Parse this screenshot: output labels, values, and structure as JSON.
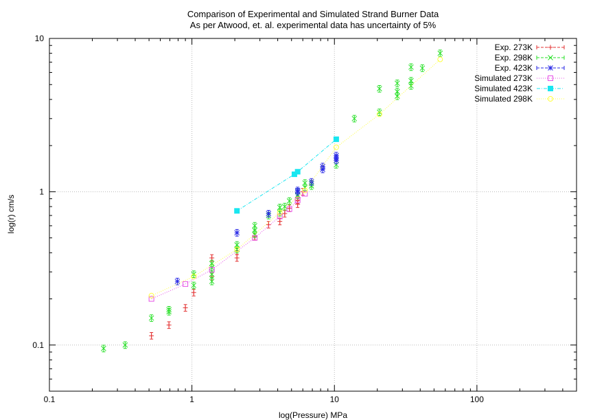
{
  "chart_data": {
    "type": "scatter",
    "title": "Comparison of Experimental and Simulated Strand Burner Data",
    "subtitle": "As per Atwood, et. al. experimental data has uncertainty of 5%",
    "xlabel": "log(Pressure) MPa",
    "ylabel": "log(r) cm/s",
    "xscale": "log",
    "yscale": "log",
    "xlim": [
      0.1,
      500
    ],
    "ylim": [
      0.05,
      10
    ],
    "xticks": [
      {
        "value": 0.1,
        "label": "0.1"
      },
      {
        "value": 1,
        "label": "1"
      },
      {
        "value": 10,
        "label": "10"
      },
      {
        "value": 100,
        "label": "100"
      }
    ],
    "yticks": [
      {
        "value": 0.1,
        "label": "0.1"
      },
      {
        "value": 1,
        "label": "1"
      },
      {
        "value": 10,
        "label": "10"
      }
    ],
    "grid": true,
    "legend_position": "top-right",
    "series": [
      {
        "name": "Exp. 273K",
        "color": "#e33232",
        "marker": "plus",
        "line": false,
        "errorbars": true,
        "x": [
          0.52,
          0.69,
          0.9,
          1.03,
          1.38,
          1.38,
          2.07,
          2.07,
          2.76,
          3.45,
          4.14,
          4.48,
          4.83,
          5.52,
          5.52,
          6.0
        ],
        "y": [
          0.115,
          0.135,
          0.175,
          0.22,
          0.28,
          0.37,
          0.37,
          0.41,
          0.51,
          0.61,
          0.64,
          0.72,
          0.78,
          0.83,
          0.88,
          1.0
        ]
      },
      {
        "name": "Exp. 298K",
        "color": "#28e028",
        "marker": "x",
        "line": false,
        "errorbars": true,
        "x": [
          0.24,
          0.34,
          0.52,
          0.69,
          0.69,
          1.03,
          1.03,
          1.38,
          1.38,
          1.38,
          1.38,
          2.07,
          2.07,
          2.76,
          2.76,
          2.76,
          3.45,
          4.14,
          4.14,
          4.48,
          4.83,
          5.52,
          5.52,
          6.21,
          6.21,
          6.9,
          6.9,
          10.3,
          13.8,
          20.7,
          20.7,
          27.6,
          27.6,
          27.6,
          34.5,
          34.5,
          34.5,
          41.4,
          55.2
        ],
        "y": [
          0.095,
          0.1,
          0.15,
          0.165,
          0.17,
          0.245,
          0.29,
          0.26,
          0.29,
          0.32,
          0.34,
          0.42,
          0.45,
          0.53,
          0.56,
          0.6,
          0.7,
          0.73,
          0.79,
          0.8,
          0.87,
          0.95,
          1.0,
          1.07,
          1.14,
          1.09,
          1.13,
          1.5,
          3.0,
          3.3,
          4.7,
          4.2,
          4.5,
          5.1,
          4.9,
          5.3,
          6.5,
          6.4,
          8.0
        ]
      },
      {
        "name": "Exp. 423K",
        "color": "#2828e6",
        "marker": "star",
        "line": false,
        "errorbars": true,
        "x": [
          0.79,
          2.07,
          3.45,
          5.52,
          5.52,
          6.9,
          8.27,
          8.27,
          10.3,
          10.3,
          10.3
        ],
        "y": [
          0.26,
          0.54,
          0.72,
          1.0,
          1.02,
          1.16,
          1.4,
          1.46,
          1.6,
          1.66,
          1.72
        ]
      },
      {
        "name": "Simulated 273K",
        "color": "#e650e6",
        "marker": "open-square",
        "line": true,
        "errorbars": false,
        "x": [
          0.52,
          0.9,
          1.38,
          2.76,
          4.14,
          4.83,
          5.52,
          6.21
        ],
        "y": [
          0.2,
          0.25,
          0.31,
          0.5,
          0.69,
          0.77,
          0.88,
          0.97
        ]
      },
      {
        "name": "Simulated 423K",
        "color": "#19e6f0",
        "marker": "filled-square",
        "line": true,
        "errorbars": false,
        "x": [
          2.07,
          5.24,
          5.52,
          10.3
        ],
        "y": [
          0.75,
          1.3,
          1.35,
          2.2
        ]
      },
      {
        "name": "Simulated 298K",
        "color": "#ffff3c",
        "marker": "open-circle",
        "line": true,
        "errorbars": false,
        "x": [
          0.52,
          1.03,
          2.07,
          4.14,
          6.21,
          10.3,
          20.7,
          55.2
        ],
        "y": [
          0.21,
          0.28,
          0.42,
          0.73,
          1.02,
          1.95,
          3.2,
          7.3
        ]
      }
    ]
  }
}
